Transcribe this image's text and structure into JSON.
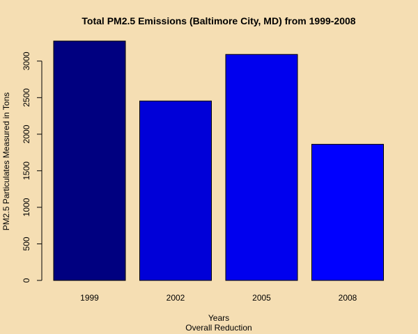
{
  "chart_data": {
    "type": "bar",
    "title": "Total PM2.5 Emissions (Baltimore City, MD) from 1999-2008",
    "xlabel": "Years",
    "sublabel": "Overall Reduction",
    "ylabel": "PM2.5 Particulates Measured in Tons",
    "categories": [
      "1999",
      "2002",
      "2005",
      "2008"
    ],
    "values": [
      3274,
      2454,
      3091,
      1862
    ],
    "ylim": [
      0,
      3274
    ],
    "yticks": [
      0,
      500,
      1000,
      1500,
      2000,
      2500,
      3000
    ],
    "grid": false,
    "colors": {
      "background": "#f5deb3",
      "bars": [
        "#000080",
        "#0000d8",
        "#0000ee",
        "#0000ff"
      ],
      "text": "#000000"
    }
  }
}
